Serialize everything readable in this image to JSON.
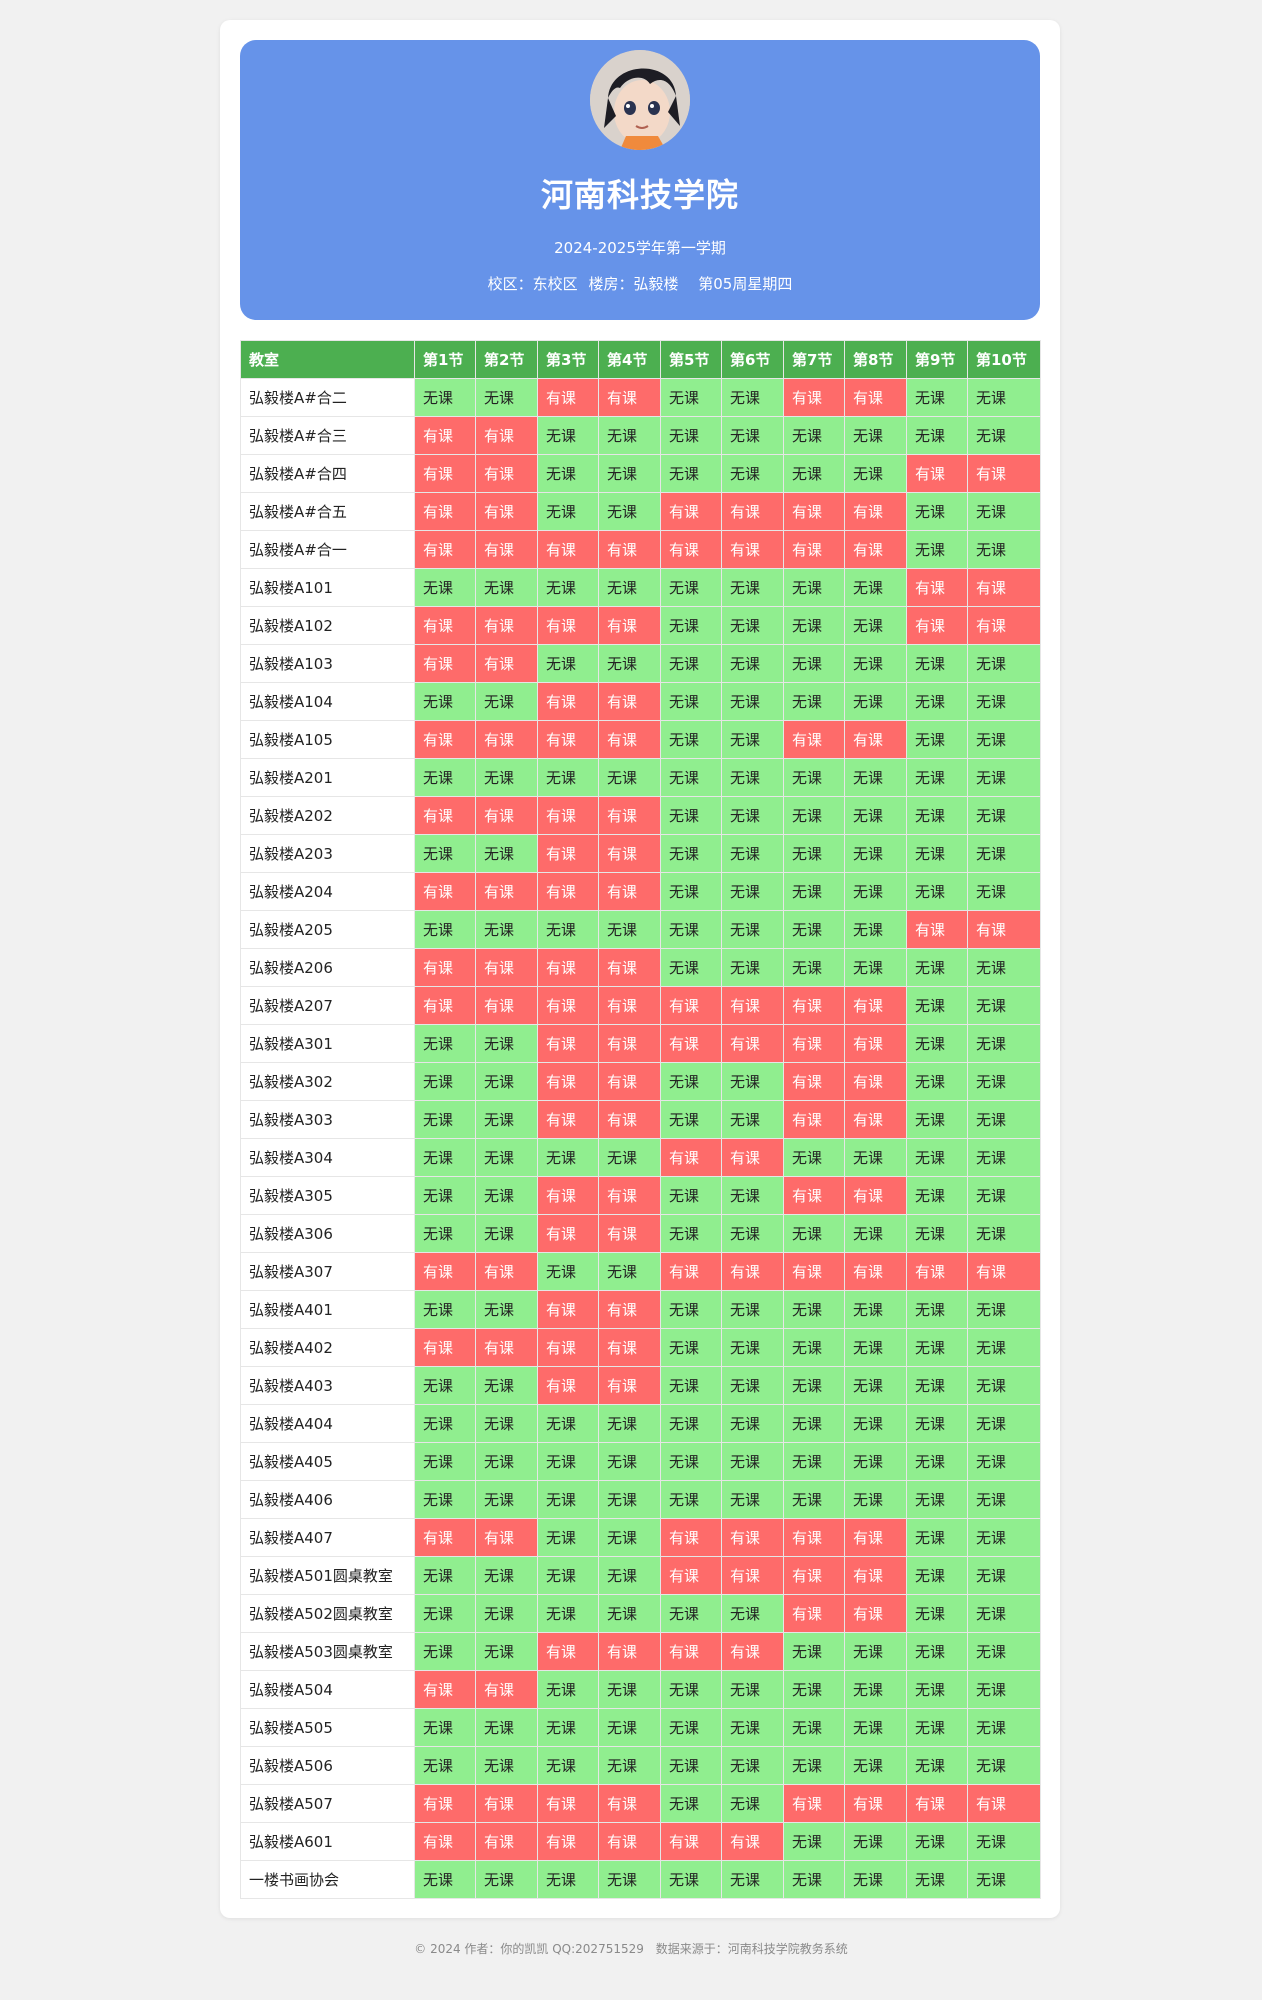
{
  "header": {
    "school": "河南科技学院",
    "term": "2024-2025学年第一学期",
    "campus": "校区：东校区",
    "building": "楼房：弘毅楼",
    "week": "第05周星期四"
  },
  "table": {
    "columns": [
      "教室",
      "第1节",
      "第2节",
      "第3节",
      "第4节",
      "第5节",
      "第6节",
      "第7节",
      "第8节",
      "第9节",
      "第10节"
    ],
    "status_labels": {
      "1": "有课",
      "0": "无课"
    },
    "colors": {
      "busy": "#fe6b6a",
      "free": "#90ee8f",
      "header": "#4caf50"
    },
    "rows": [
      {
        "room": "弘毅楼A#合二",
        "s": [
          0,
          0,
          1,
          1,
          0,
          0,
          1,
          1,
          0,
          0
        ]
      },
      {
        "room": "弘毅楼A#合三",
        "s": [
          1,
          1,
          0,
          0,
          0,
          0,
          0,
          0,
          0,
          0
        ]
      },
      {
        "room": "弘毅楼A#合四",
        "s": [
          1,
          1,
          0,
          0,
          0,
          0,
          0,
          0,
          1,
          1
        ]
      },
      {
        "room": "弘毅楼A#合五",
        "s": [
          1,
          1,
          0,
          0,
          1,
          1,
          1,
          1,
          0,
          0
        ]
      },
      {
        "room": "弘毅楼A#合一",
        "s": [
          1,
          1,
          1,
          1,
          1,
          1,
          1,
          1,
          0,
          0
        ]
      },
      {
        "room": "弘毅楼A101",
        "s": [
          0,
          0,
          0,
          0,
          0,
          0,
          0,
          0,
          1,
          1
        ]
      },
      {
        "room": "弘毅楼A102",
        "s": [
          1,
          1,
          1,
          1,
          0,
          0,
          0,
          0,
          1,
          1
        ]
      },
      {
        "room": "弘毅楼A103",
        "s": [
          1,
          1,
          0,
          0,
          0,
          0,
          0,
          0,
          0,
          0
        ]
      },
      {
        "room": "弘毅楼A104",
        "s": [
          0,
          0,
          1,
          1,
          0,
          0,
          0,
          0,
          0,
          0
        ]
      },
      {
        "room": "弘毅楼A105",
        "s": [
          1,
          1,
          1,
          1,
          0,
          0,
          1,
          1,
          0,
          0
        ]
      },
      {
        "room": "弘毅楼A201",
        "s": [
          0,
          0,
          0,
          0,
          0,
          0,
          0,
          0,
          0,
          0
        ]
      },
      {
        "room": "弘毅楼A202",
        "s": [
          1,
          1,
          1,
          1,
          0,
          0,
          0,
          0,
          0,
          0
        ]
      },
      {
        "room": "弘毅楼A203",
        "s": [
          0,
          0,
          1,
          1,
          0,
          0,
          0,
          0,
          0,
          0
        ]
      },
      {
        "room": "弘毅楼A204",
        "s": [
          1,
          1,
          1,
          1,
          0,
          0,
          0,
          0,
          0,
          0
        ]
      },
      {
        "room": "弘毅楼A205",
        "s": [
          0,
          0,
          0,
          0,
          0,
          0,
          0,
          0,
          1,
          1
        ]
      },
      {
        "room": "弘毅楼A206",
        "s": [
          1,
          1,
          1,
          1,
          0,
          0,
          0,
          0,
          0,
          0
        ]
      },
      {
        "room": "弘毅楼A207",
        "s": [
          1,
          1,
          1,
          1,
          1,
          1,
          1,
          1,
          0,
          0
        ]
      },
      {
        "room": "弘毅楼A301",
        "s": [
          0,
          0,
          1,
          1,
          1,
          1,
          1,
          1,
          0,
          0
        ]
      },
      {
        "room": "弘毅楼A302",
        "s": [
          0,
          0,
          1,
          1,
          0,
          0,
          1,
          1,
          0,
          0
        ]
      },
      {
        "room": "弘毅楼A303",
        "s": [
          0,
          0,
          1,
          1,
          0,
          0,
          1,
          1,
          0,
          0
        ]
      },
      {
        "room": "弘毅楼A304",
        "s": [
          0,
          0,
          0,
          0,
          1,
          1,
          0,
          0,
          0,
          0
        ]
      },
      {
        "room": "弘毅楼A305",
        "s": [
          0,
          0,
          1,
          1,
          0,
          0,
          1,
          1,
          0,
          0
        ]
      },
      {
        "room": "弘毅楼A306",
        "s": [
          0,
          0,
          1,
          1,
          0,
          0,
          0,
          0,
          0,
          0
        ]
      },
      {
        "room": "弘毅楼A307",
        "s": [
          1,
          1,
          0,
          0,
          1,
          1,
          1,
          1,
          1,
          1
        ]
      },
      {
        "room": "弘毅楼A401",
        "s": [
          0,
          0,
          1,
          1,
          0,
          0,
          0,
          0,
          0,
          0
        ]
      },
      {
        "room": "弘毅楼A402",
        "s": [
          1,
          1,
          1,
          1,
          0,
          0,
          0,
          0,
          0,
          0
        ]
      },
      {
        "room": "弘毅楼A403",
        "s": [
          0,
          0,
          1,
          1,
          0,
          0,
          0,
          0,
          0,
          0
        ]
      },
      {
        "room": "弘毅楼A404",
        "s": [
          0,
          0,
          0,
          0,
          0,
          0,
          0,
          0,
          0,
          0
        ]
      },
      {
        "room": "弘毅楼A405",
        "s": [
          0,
          0,
          0,
          0,
          0,
          0,
          0,
          0,
          0,
          0
        ]
      },
      {
        "room": "弘毅楼A406",
        "s": [
          0,
          0,
          0,
          0,
          0,
          0,
          0,
          0,
          0,
          0
        ]
      },
      {
        "room": "弘毅楼A407",
        "s": [
          1,
          1,
          0,
          0,
          1,
          1,
          1,
          1,
          0,
          0
        ]
      },
      {
        "room": "弘毅楼A501圆桌教室",
        "s": [
          0,
          0,
          0,
          0,
          1,
          1,
          1,
          1,
          0,
          0
        ]
      },
      {
        "room": "弘毅楼A502圆桌教室",
        "s": [
          0,
          0,
          0,
          0,
          0,
          0,
          1,
          1,
          0,
          0
        ]
      },
      {
        "room": "弘毅楼A503圆桌教室",
        "s": [
          0,
          0,
          1,
          1,
          1,
          1,
          0,
          0,
          0,
          0
        ]
      },
      {
        "room": "弘毅楼A504",
        "s": [
          1,
          1,
          0,
          0,
          0,
          0,
          0,
          0,
          0,
          0
        ]
      },
      {
        "room": "弘毅楼A505",
        "s": [
          0,
          0,
          0,
          0,
          0,
          0,
          0,
          0,
          0,
          0
        ]
      },
      {
        "room": "弘毅楼A506",
        "s": [
          0,
          0,
          0,
          0,
          0,
          0,
          0,
          0,
          0,
          0
        ]
      },
      {
        "room": "弘毅楼A507",
        "s": [
          1,
          1,
          1,
          1,
          0,
          0,
          1,
          1,
          1,
          1
        ]
      },
      {
        "room": "弘毅楼A601",
        "s": [
          1,
          1,
          1,
          1,
          1,
          1,
          0,
          0,
          0,
          0
        ]
      },
      {
        "room": "一楼书画协会",
        "s": [
          0,
          0,
          0,
          0,
          0,
          0,
          0,
          0,
          0,
          0
        ]
      }
    ]
  },
  "footer": {
    "copyright": "© 2024 作者：你的凯凯 QQ:202751529",
    "source": "数据来源于：河南科技学院教务系统"
  }
}
